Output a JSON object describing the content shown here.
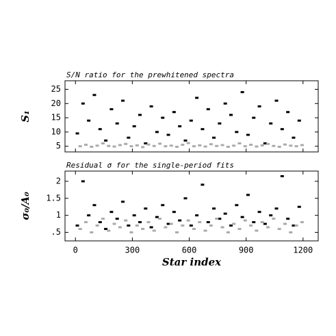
{
  "chart_data": [
    {
      "type": "scatter",
      "title": "S/N ratio for the prewhitened spectra",
      "ylabel": "S₁",
      "xlim": [
        -55,
        1280
      ],
      "xticks": [
        0,
        300,
        600,
        900,
        1200
      ],
      "ylim": [
        3,
        28
      ],
      "yticks": [
        5,
        10,
        15,
        20,
        25
      ],
      "series": [
        {
          "color": "#000000",
          "x": [
            10,
            40,
            70,
            100,
            130,
            160,
            190,
            220,
            250,
            280,
            310,
            340,
            370,
            400,
            430,
            460,
            490,
            520,
            550,
            580,
            610,
            640,
            670,
            700,
            730,
            760,
            790,
            820,
            850,
            880,
            910,
            940,
            970,
            1000,
            1030,
            1060,
            1090,
            1120,
            1150,
            1180
          ],
          "values": [
            9.5,
            20,
            14,
            23,
            11,
            7,
            18,
            13,
            21,
            8,
            12,
            16,
            6,
            19,
            10,
            15,
            9,
            17,
            12,
            7,
            14,
            22,
            11,
            18,
            8,
            13,
            20,
            16,
            10,
            24,
            9,
            15,
            19,
            6,
            13,
            21,
            11,
            17,
            8,
            14
          ]
        },
        {
          "color": "#aaaaaa",
          "x": [
            25,
            55,
            85,
            115,
            145,
            175,
            205,
            235,
            265,
            295,
            325,
            355,
            385,
            415,
            445,
            475,
            505,
            535,
            565,
            595,
            625,
            655,
            685,
            715,
            745,
            775,
            805,
            835,
            865,
            895,
            925,
            955,
            985,
            1015,
            1045,
            1075,
            1105,
            1135,
            1165,
            1195
          ],
          "values": [
            5,
            5.5,
            4.8,
            5.2,
            6,
            5.1,
            4.9,
            5.4,
            5.8,
            5,
            5.3,
            4.7,
            5.6,
            5.1,
            5.9,
            5,
            5.2,
            4.8,
            5.5,
            6.1,
            5,
            5.3,
            4.9,
            5.7,
            5.1,
            5.4,
            4.8,
            5.2,
            6,
            5,
            5.5,
            4.9,
            5.3,
            5.8,
            5.1,
            4.8,
            5.6,
            5.2,
            5,
            5.4
          ]
        }
      ]
    },
    {
      "type": "scatter",
      "title": "Residual σ for the single-period fits",
      "ylabel": "σ₀/A₀",
      "xlabel": "Star index",
      "xlim": [
        -55,
        1280
      ],
      "xticks": [
        0,
        300,
        600,
        900,
        1200
      ],
      "ylim": [
        0.25,
        2.3
      ],
      "yticks": [
        {
          "value": 0.5,
          "label": ".5"
        },
        1,
        1.5,
        2
      ],
      "series": [
        {
          "color": "#000000",
          "x": [
            10,
            40,
            70,
            100,
            130,
            160,
            190,
            220,
            250,
            280,
            310,
            340,
            370,
            400,
            430,
            460,
            490,
            520,
            550,
            580,
            610,
            640,
            670,
            700,
            730,
            760,
            790,
            820,
            850,
            880,
            910,
            940,
            970,
            1000,
            1030,
            1060,
            1090,
            1120,
            1150,
            1180
          ],
          "values": [
            0.7,
            2.0,
            1.0,
            1.3,
            0.8,
            0.6,
            1.1,
            0.9,
            1.4,
            0.7,
            1.0,
            0.8,
            1.2,
            0.65,
            0.95,
            1.3,
            0.75,
            1.1,
            0.85,
            1.5,
            0.7,
            1.0,
            1.9,
            0.8,
            1.2,
            0.9,
            1.05,
            0.7,
            1.3,
            0.95,
            1.6,
            0.8,
            1.1,
            0.75,
            1.0,
            1.2,
            2.15,
            0.9,
            0.7,
            1.25
          ]
        },
        {
          "color": "#aaaaaa",
          "x": [
            25,
            55,
            85,
            115,
            145,
            175,
            205,
            235,
            265,
            295,
            325,
            355,
            385,
            415,
            445,
            475,
            505,
            535,
            565,
            595,
            625,
            655,
            685,
            715,
            745,
            775,
            805,
            835,
            865,
            895,
            925,
            955,
            985,
            1015,
            1045,
            1075,
            1105,
            1135,
            1165,
            1195
          ],
          "values": [
            0.6,
            0.8,
            0.5,
            0.7,
            0.9,
            0.55,
            0.75,
            0.65,
            0.85,
            0.5,
            0.7,
            0.6,
            0.8,
            0.55,
            0.9,
            0.65,
            0.75,
            0.5,
            0.7,
            0.85,
            0.6,
            0.8,
            0.55,
            0.7,
            0.9,
            0.65,
            0.5,
            0.75,
            0.6,
            0.85,
            0.7,
            0.55,
            0.8,
            0.65,
            0.9,
            0.6,
            0.75,
            0.5,
            0.7,
            0.8
          ]
        }
      ]
    }
  ]
}
